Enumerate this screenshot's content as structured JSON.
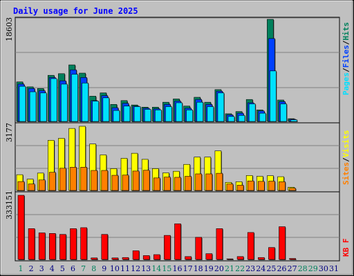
{
  "title": "Daily usage for June 2025",
  "colors": {
    "background": "#c0c0c0",
    "panel": "#c0c0c0",
    "title": "#0000ff",
    "hits": "#00805c",
    "files": "#0040ff",
    "pages": "#00e0ff",
    "visits": "#ffff00",
    "sites": "#ff8000",
    "kbytes": "#ff0000",
    "weekend": "#00805c",
    "weekday": "#000080"
  },
  "chart_data": [
    {
      "type": "bar",
      "name": "hits-files-pages",
      "max_label": "18603",
      "ylim": [
        0,
        18603
      ],
      "legend": [
        "Pages",
        "Files",
        "Hits"
      ],
      "days": [
        1,
        2,
        3,
        4,
        5,
        6,
        7,
        8,
        9,
        10,
        11,
        12,
        13,
        14,
        15,
        16,
        17,
        18,
        19,
        20,
        21,
        22,
        23,
        24,
        25,
        26,
        27,
        28,
        29,
        30,
        31
      ],
      "series": [
        {
          "name": "Hits",
          "values": [
            7200,
            6300,
            6000,
            8400,
            8700,
            10300,
            8800,
            4600,
            5200,
            3100,
            3800,
            3000,
            2600,
            2600,
            3500,
            4100,
            2800,
            4400,
            3500,
            5800,
            1400,
            1800,
            4000,
            2100,
            18603,
            3900,
            500,
            0,
            0,
            0,
            0
          ]
        },
        {
          "name": "Files",
          "values": [
            6800,
            6000,
            5600,
            8000,
            7400,
            9400,
            8000,
            3800,
            4700,
            2500,
            3300,
            2800,
            2400,
            2300,
            3100,
            3700,
            2400,
            4000,
            3100,
            5500,
            1200,
            1500,
            3400,
            1900,
            15100,
            3600,
            400,
            0,
            0,
            0,
            0
          ]
        },
        {
          "name": "Pages",
          "values": [
            6400,
            5400,
            5200,
            7800,
            6800,
            8600,
            7000,
            3700,
            4300,
            2000,
            2800,
            2700,
            2200,
            2100,
            2700,
            3400,
            2100,
            3500,
            2700,
            5200,
            900,
            1100,
            3200,
            1500,
            9200,
            3200,
            300,
            0,
            0,
            0,
            0
          ]
        }
      ]
    },
    {
      "type": "bar",
      "name": "visits-sites",
      "max_label": "3177",
      "ylim": [
        0,
        3177
      ],
      "legend": [
        "Sites",
        "Visits"
      ],
      "days": [
        1,
        2,
        3,
        4,
        5,
        6,
        7,
        8,
        9,
        10,
        11,
        12,
        13,
        14,
        15,
        16,
        17,
        18,
        19,
        20,
        21,
        22,
        23,
        24,
        25,
        26,
        27,
        28,
        29,
        30,
        31
      ],
      "series": [
        {
          "name": "Visits",
          "values": [
            780,
            560,
            860,
            2480,
            2580,
            3070,
            3177,
            2300,
            1760,
            1080,
            1590,
            1840,
            1540,
            1080,
            870,
            950,
            1290,
            1650,
            1650,
            1960,
            400,
            430,
            740,
            700,
            730,
            680,
            160,
            0,
            0,
            0,
            0
          ]
        },
        {
          "name": "Sites",
          "values": [
            440,
            320,
            520,
            900,
            1100,
            1150,
            1150,
            990,
            990,
            750,
            760,
            960,
            1000,
            620,
            660,
            650,
            700,
            820,
            820,
            850,
            320,
            260,
            470,
            450,
            460,
            430,
            110,
            0,
            0,
            0,
            0
          ]
        }
      ]
    },
    {
      "type": "bar",
      "name": "kbytes",
      "max_label": "333151",
      "ylim": [
        0,
        333151
      ],
      "legend": [
        "KB F"
      ],
      "days": [
        1,
        2,
        3,
        4,
        5,
        6,
        7,
        8,
        9,
        10,
        11,
        12,
        13,
        14,
        15,
        16,
        17,
        18,
        19,
        20,
        21,
        22,
        23,
        24,
        25,
        26,
        27,
        28,
        29,
        30,
        31
      ],
      "series": [
        {
          "name": "KB F",
          "values": [
            333151,
            160000,
            138000,
            135000,
            130000,
            160000,
            165000,
            8000,
            130000,
            8000,
            10000,
            45000,
            20000,
            25000,
            125000,
            185000,
            15000,
            115000,
            30000,
            160000,
            3000,
            15000,
            140000,
            10000,
            62000,
            170000,
            5000,
            0,
            0,
            0,
            0
          ]
        }
      ]
    }
  ],
  "x_labels": [
    {
      "text": "1",
      "weekend": true
    },
    {
      "text": "2",
      "weekend": false
    },
    {
      "text": "3",
      "weekend": false
    },
    {
      "text": "4",
      "weekend": false
    },
    {
      "text": "5",
      "weekend": false
    },
    {
      "text": "6",
      "weekend": false
    },
    {
      "text": "7",
      "weekend": true
    },
    {
      "text": "8",
      "weekend": true
    },
    {
      "text": "9",
      "weekend": false
    },
    {
      "text": "10",
      "weekend": false
    },
    {
      "text": "11",
      "weekend": false
    },
    {
      "text": "12",
      "weekend": false
    },
    {
      "text": "13",
      "weekend": false
    },
    {
      "text": "14",
      "weekend": true
    },
    {
      "text": "15",
      "weekend": true
    },
    {
      "text": "16",
      "weekend": false
    },
    {
      "text": "17",
      "weekend": false
    },
    {
      "text": "18",
      "weekend": false
    },
    {
      "text": "19",
      "weekend": false
    },
    {
      "text": "20",
      "weekend": false
    },
    {
      "text": "21",
      "weekend": true
    },
    {
      "text": "22",
      "weekend": true
    },
    {
      "text": "23",
      "weekend": false
    },
    {
      "text": "24",
      "weekend": false
    },
    {
      "text": "25",
      "weekend": false
    },
    {
      "text": "26",
      "weekend": false
    },
    {
      "text": "27",
      "weekend": false
    },
    {
      "text": "28",
      "weekend": true
    },
    {
      "text": "29",
      "weekend": true
    },
    {
      "text": "30",
      "weekend": false
    },
    {
      "text": "31",
      "weekend": false
    }
  ],
  "legend_top": {
    "pages": "Pages",
    "sep1": "/",
    "files": "Files",
    "sep2": "/",
    "hits": "Hits"
  },
  "legend_mid": {
    "sites": "Sites",
    "sep1": "/",
    "visits": "Visits"
  },
  "legend_bot": {
    "kbf": "KB F"
  }
}
